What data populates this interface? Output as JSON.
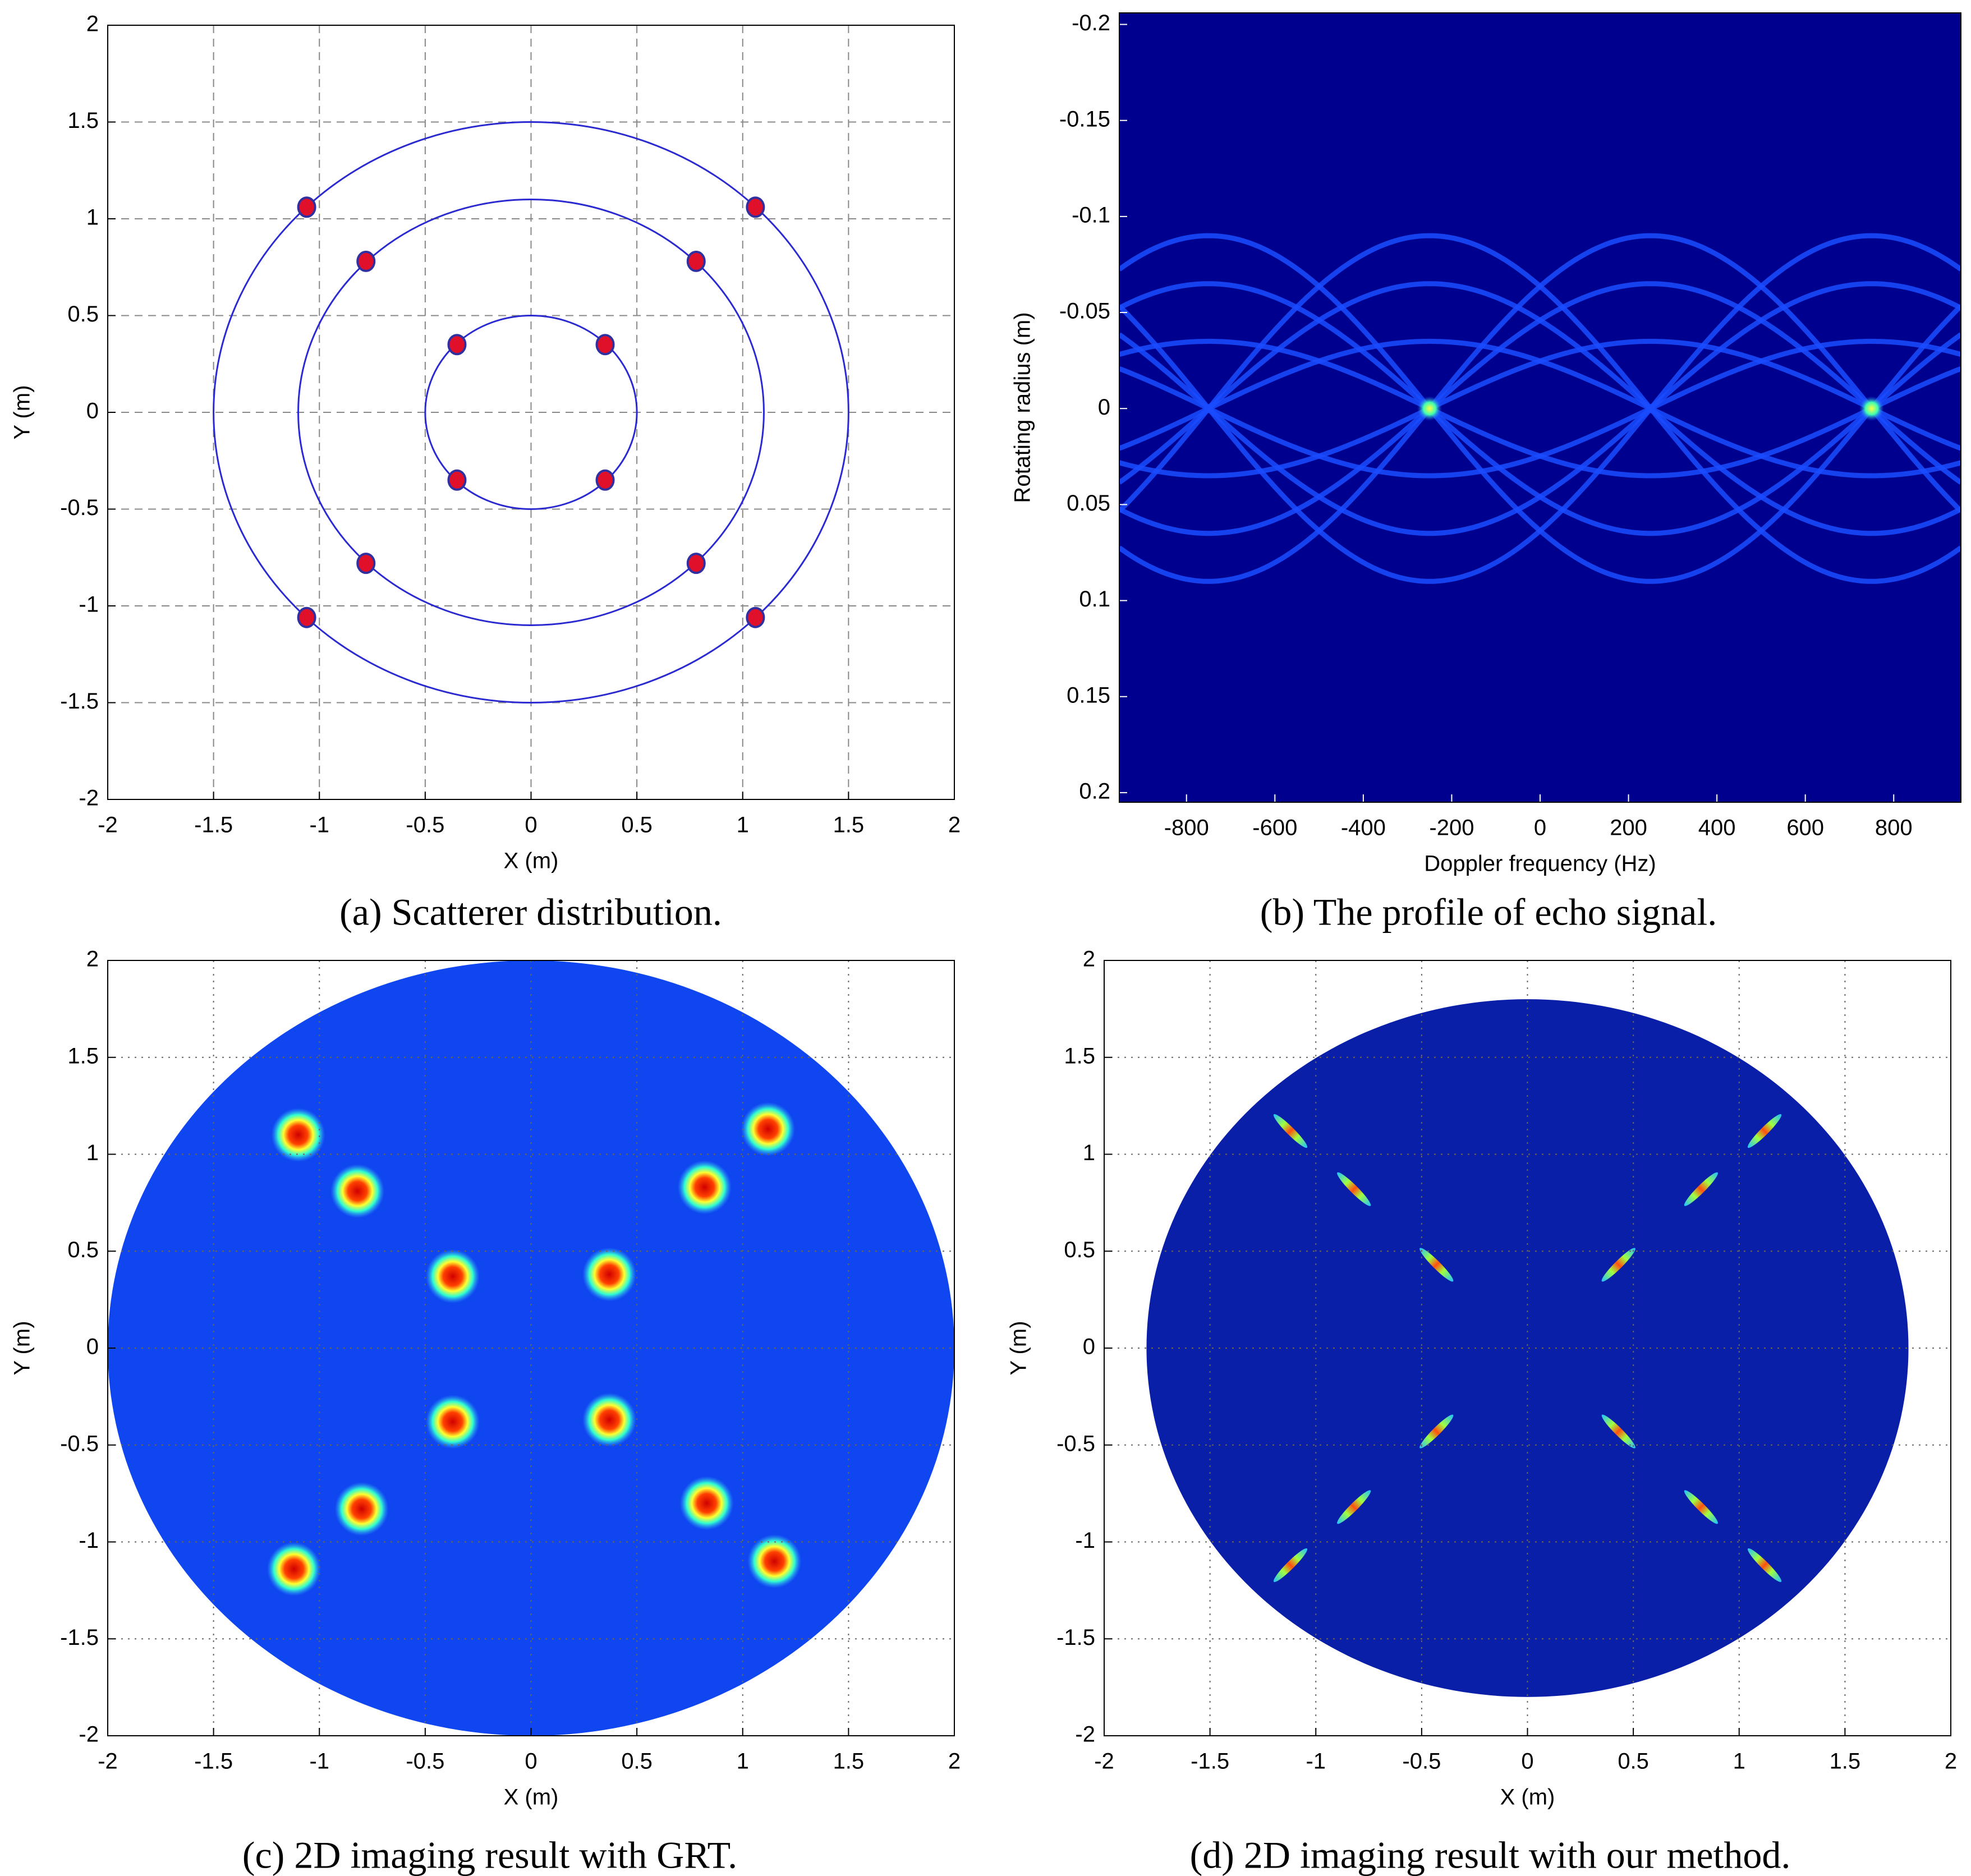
{
  "chart_data": [
    {
      "type": "scatter",
      "xlabel": "X (m)",
      "ylabel": "Y (m)",
      "caption": "(a) Scatterer distribution.",
      "xlim": [
        -2,
        2
      ],
      "ylim": [
        -2,
        2
      ],
      "xticks": [
        -2,
        -1.5,
        -1,
        -0.5,
        0,
        0.5,
        1,
        1.5,
        2
      ],
      "yticks": [
        -2,
        -1.5,
        -1,
        -0.5,
        0,
        0.5,
        1,
        1.5,
        2
      ],
      "grid": "dashed",
      "color": "#e0102a",
      "ring_color": "#2a2ad0",
      "rings": [
        0.5,
        1.1,
        1.5
      ],
      "x": [
        -1.06,
        1.06,
        -0.78,
        0.78,
        -0.35,
        0.35,
        -0.35,
        0.35,
        -0.78,
        0.78,
        -1.06,
        1.06
      ],
      "y": [
        1.06,
        1.06,
        0.78,
        0.78,
        0.35,
        0.35,
        -0.35,
        -0.35,
        -0.78,
        -0.78,
        -1.06,
        -1.06
      ]
    },
    {
      "type": "heatmap",
      "xlabel": "Doppler frequency (Hz)",
      "ylabel": "Rotating radius (m)",
      "caption": "(b) The profile of echo signal.",
      "xlim": [
        -952,
        952
      ],
      "ylim": [
        -0.206,
        0.205
      ],
      "xticks": [
        -800,
        -600,
        -400,
        -200,
        0,
        200,
        400,
        600,
        800
      ],
      "yticks": [
        -0.2,
        -0.15,
        -0.1,
        -0.05,
        0,
        0.05,
        0.1,
        0.15,
        0.2
      ],
      "background": "#00008f",
      "trace_color": "#1a4cff",
      "amplitudes": [
        0.035,
        0.065,
        0.09
      ],
      "peaks_x": [
        -250,
        750
      ],
      "peaks_y": [
        0,
        0
      ]
    },
    {
      "type": "image",
      "style": "spot",
      "xlabel": "X (m)",
      "ylabel": "Y (m)",
      "caption": "(c) 2D imaging result with GRT.",
      "xlim": [
        -2,
        2
      ],
      "ylim": [
        -2,
        2
      ],
      "xticks": [
        -2,
        -1.5,
        -1,
        -0.5,
        0,
        0.5,
        1,
        1.5,
        2
      ],
      "yticks": [
        -2,
        -1.5,
        -1,
        -0.5,
        0,
        0.5,
        1,
        1.5,
        2
      ],
      "grid": "dotted",
      "disk_radius": 2,
      "disk_color": "#0f46f0",
      "x": [
        -1.1,
        1.12,
        -0.82,
        0.82,
        -0.37,
        0.37,
        -0.37,
        0.37,
        -0.8,
        0.83,
        -1.12,
        1.15
      ],
      "y": [
        1.1,
        1.13,
        0.81,
        0.83,
        0.37,
        0.38,
        -0.38,
        -0.37,
        -0.83,
        -0.8,
        -1.14,
        -1.1
      ]
    },
    {
      "type": "image",
      "style": "streak",
      "xlabel": "X (m)",
      "ylabel": "Y (m)",
      "caption": "(d) 2D imaging result with our method.",
      "xlim": [
        -2,
        2
      ],
      "ylim": [
        -2,
        2
      ],
      "xticks": [
        -2,
        -1.5,
        -1,
        -0.5,
        0,
        0.5,
        1,
        1.5,
        2
      ],
      "yticks": [
        -2,
        -1.5,
        -1,
        -0.5,
        0,
        0.5,
        1,
        1.5,
        2
      ],
      "grid": "dotted",
      "disk_radius": 1.8,
      "disk_color": "#0a1fa8",
      "x": [
        -1.12,
        1.12,
        -0.82,
        0.82,
        -0.43,
        0.43,
        -0.43,
        0.43,
        -0.82,
        0.82,
        -1.12,
        1.12
      ],
      "y": [
        1.12,
        1.12,
        0.82,
        0.82,
        0.43,
        0.43,
        -0.43,
        -0.43,
        -0.82,
        -0.82,
        -1.12,
        -1.12
      ]
    }
  ]
}
